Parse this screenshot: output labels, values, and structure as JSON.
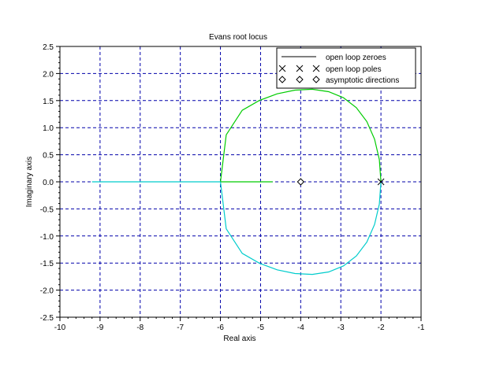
{
  "window": {
    "title": "Evans root locus"
  },
  "chart_data": {
    "type": "line",
    "title": "Evans root locus",
    "xlabel": "Real axis",
    "ylabel": "Imaginary axis",
    "xlim": [
      -10,
      -1
    ],
    "ylim": [
      -2.5,
      2.5
    ],
    "xticks": [
      -10,
      -9,
      -8,
      -7,
      -6,
      -5,
      -4,
      -3,
      -2,
      -1
    ],
    "xtick_labels": [
      "-10",
      "-9",
      "-8",
      "-7",
      "-6",
      "-5",
      "-4",
      "-3",
      "-2",
      "-1"
    ],
    "yticks": [
      -2.5,
      -2.0,
      -1.5,
      -1.0,
      -0.5,
      0.0,
      0.5,
      1.0,
      1.5,
      2.0,
      2.5
    ],
    "ytick_labels": [
      "-2.5",
      "-2.0",
      "-1.5",
      "-1.0",
      "-0.5",
      "0.0",
      "0.5",
      "1.0",
      "1.5",
      "2.0",
      "2.5"
    ],
    "grid": true,
    "grid_color": "#0000aa",
    "legend_position": "top-right",
    "legend": [
      {
        "label": "open loop zeroes",
        "marker": "line",
        "color": "#000000"
      },
      {
        "label": "open loop poles",
        "marker": "x",
        "color": "#000000"
      },
      {
        "label": "asymptotic directions",
        "marker": "diamond",
        "color": "#000000"
      }
    ],
    "series": [
      {
        "color": "#00cc00",
        "x": [
          -2.0,
          -2.0402,
          -2.1586,
          -2.3514,
          -2.6124,
          -2.933,
          -3.303,
          -3.7106,
          -4.1431,
          -4.5872,
          -5.0293,
          -5.4564,
          -5.8557,
          -6.0
        ],
        "y": [
          0.0,
          0.409,
          0.788,
          1.113,
          1.3695,
          1.5525,
          1.664,
          1.709,
          1.694,
          1.625,
          1.503,
          1.321,
          0.868,
          0.0
        ]
      },
      {
        "color": "#00cc00",
        "x": [
          -6.0,
          -5.5,
          -5.0,
          -4.7
        ],
        "y": [
          0.0,
          0.0,
          0.0,
          0.0
        ]
      },
      {
        "color": "#00cccc",
        "x": [
          -2.0,
          -2.0402,
          -2.1586,
          -2.3514,
          -2.6124,
          -2.933,
          -3.303,
          -3.7106,
          -4.1431,
          -4.5872,
          -5.0293,
          -5.4564,
          -5.8557,
          -6.0
        ],
        "y": [
          0.0,
          -0.409,
          -0.788,
          -1.113,
          -1.3695,
          -1.5525,
          -1.664,
          -1.709,
          -1.694,
          -1.625,
          -1.503,
          -1.321,
          -0.868,
          0.0
        ]
      },
      {
        "color": "#00cccc",
        "x": [
          -9.2,
          -8.0,
          -7.0,
          -6.0
        ],
        "y": [
          0.0,
          0.0,
          0.0,
          0.0
        ]
      }
    ],
    "open_loop_poles": {
      "x": [
        -2.0
      ],
      "y": [
        0.0
      ]
    },
    "asymptotic_directions": {
      "x": [
        -4.0
      ],
      "y": [
        0.0
      ]
    }
  }
}
